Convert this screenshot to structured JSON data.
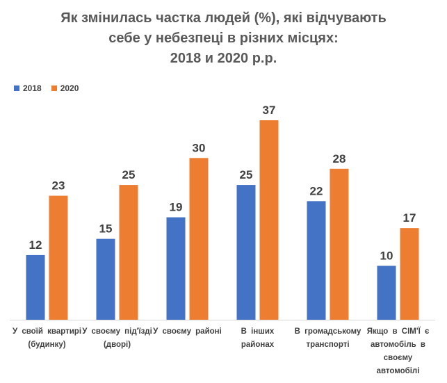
{
  "chart_data": {
    "type": "bar",
    "title_lines": [
      "Як змінилась частка людей (%), які відчувають",
      "себе у небезпеці в різних місцях:",
      "2018 и 2020 р.р."
    ],
    "categories": [
      "У своїй квартирі (будинку)",
      "У своєму під'їзді (дворі)",
      "У своєму районі",
      "В інших районах",
      "В громадському транспорті",
      "Якщо в СІМ'Ї є автомобіль в своєму автомобілі"
    ],
    "series": [
      {
        "name": "2018",
        "color": "#4472C4",
        "values": [
          12,
          15,
          19,
          25,
          22,
          10
        ]
      },
      {
        "name": "2020",
        "color": "#ED7D31",
        "values": [
          23,
          25,
          30,
          37,
          28,
          17
        ]
      }
    ],
    "xlabel": "",
    "ylabel": "",
    "ylim": [
      0,
      37
    ],
    "grid": false,
    "legend_position": "top-left"
  }
}
